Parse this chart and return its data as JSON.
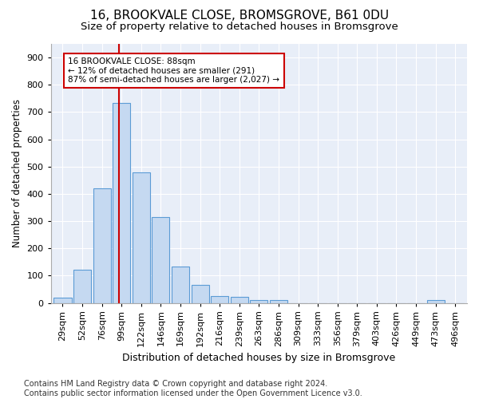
{
  "title": "16, BROOKVALE CLOSE, BROMSGROVE, B61 0DU",
  "subtitle": "Size of property relative to detached houses in Bromsgrove",
  "xlabel": "Distribution of detached houses by size in Bromsgrove",
  "ylabel": "Number of detached properties",
  "categories": [
    "29sqm",
    "52sqm",
    "76sqm",
    "99sqm",
    "122sqm",
    "146sqm",
    "169sqm",
    "192sqm",
    "216sqm",
    "239sqm",
    "263sqm",
    "286sqm",
    "309sqm",
    "333sqm",
    "356sqm",
    "379sqm",
    "403sqm",
    "426sqm",
    "449sqm",
    "473sqm",
    "496sqm"
  ],
  "values": [
    20,
    122,
    420,
    733,
    480,
    315,
    132,
    67,
    25,
    22,
    11,
    10,
    0,
    0,
    0,
    0,
    0,
    0,
    0,
    10,
    0
  ],
  "bar_color": "#c5d9f1",
  "bar_edge_color": "#5b9bd5",
  "vline_color": "#cc0000",
  "annotation_text": "16 BROOKVALE CLOSE: 88sqm\n← 12% of detached houses are smaller (291)\n87% of semi-detached houses are larger (2,027) →",
  "annotation_box_color": "#ffffff",
  "annotation_box_edge": "#cc0000",
  "ylim": [
    0,
    950
  ],
  "yticks": [
    0,
    100,
    200,
    300,
    400,
    500,
    600,
    700,
    800,
    900
  ],
  "bg_color": "#ffffff",
  "plot_bg_color": "#e8eef8",
  "footer": "Contains HM Land Registry data © Crown copyright and database right 2024.\nContains public sector information licensed under the Open Government Licence v3.0.",
  "title_fontsize": 11,
  "subtitle_fontsize": 9.5,
  "xlabel_fontsize": 9,
  "ylabel_fontsize": 8.5,
  "footer_fontsize": 7,
  "tick_fontsize": 8
}
